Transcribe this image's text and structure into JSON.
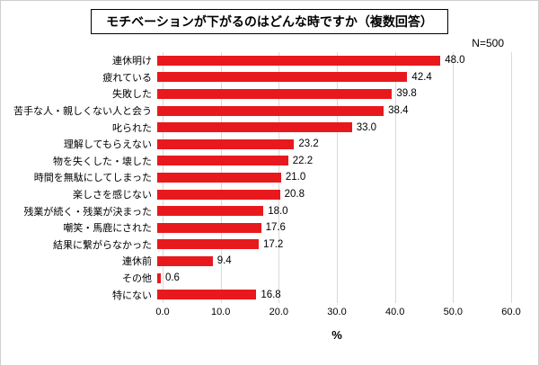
{
  "title": "モチベーションが下がるのはどんな時ですか（複数回答）",
  "sample_label": "N=500",
  "chart_data": {
    "type": "bar",
    "orientation": "horizontal",
    "title": "モチベーションが下がるのはどんな時ですか（複数回答）",
    "categories": [
      "連休明け",
      "疲れている",
      "失敗した",
      "苦手な人・親しくない人と会う",
      "叱られた",
      "理解してもらえない",
      "物を失くした・壊した",
      "時間を無駄にしてしまった",
      "楽しさを感じない",
      "残業が続く・残業が決まった",
      "嘲笑・馬鹿にされた",
      "結果に繋がらなかった",
      "連休前",
      "その他",
      "特にない"
    ],
    "values": [
      48.0,
      42.4,
      39.8,
      38.4,
      33.0,
      23.2,
      22.2,
      21.0,
      20.8,
      18.0,
      17.6,
      17.2,
      9.4,
      0.6,
      16.8
    ],
    "xlabel": "%",
    "xlim": [
      0,
      60
    ],
    "xticks": [
      "0.0",
      "10.0",
      "20.0",
      "30.0",
      "40.0",
      "50.0",
      "60.0"
    ],
    "bar_color": "#e8191d",
    "grid": true,
    "legend": "none"
  }
}
